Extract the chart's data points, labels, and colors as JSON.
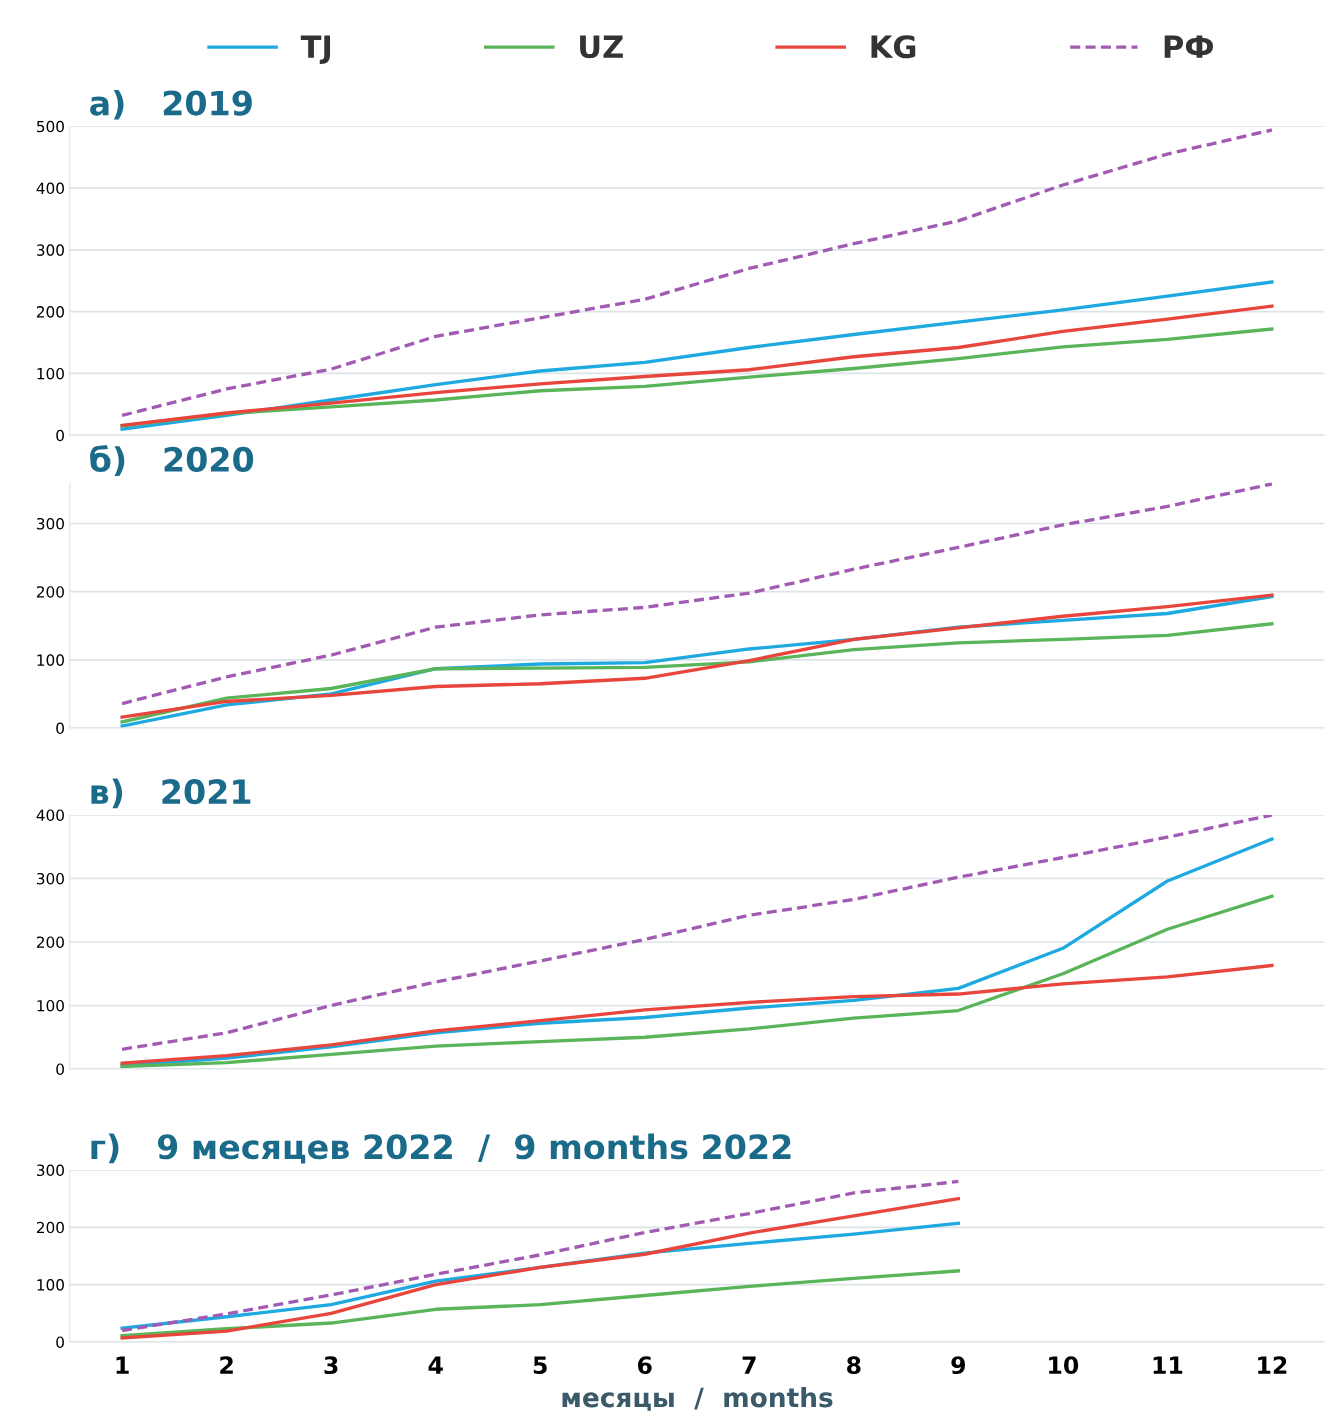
{
  "chart_data": [
    {
      "type": "line",
      "title": "а)   2019",
      "x": [
        1,
        2,
        3,
        4,
        5,
        6,
        7,
        8,
        9,
        10,
        11,
        12
      ],
      "xlim": [
        0.5,
        12.5
      ],
      "xticks": [
        1,
        2,
        3,
        4,
        5,
        6,
        7,
        8,
        9,
        10,
        11,
        12
      ],
      "ylim": [
        0,
        500
      ],
      "yticks": [
        0,
        100,
        200,
        300,
        400,
        500
      ],
      "grid": "y",
      "legend": "top",
      "tick_labels": "y",
      "series": [
        {
          "name": "TJ",
          "color": "#1fa9e1",
          "values": [
            10,
            32,
            57,
            82,
            104,
            118,
            142,
            163,
            183,
            203,
            225,
            248
          ]
        },
        {
          "name": "UZ",
          "color": "#5ab55a",
          "values": [
            15,
            35,
            46,
            57,
            72,
            79,
            94,
            108,
            124,
            143,
            155,
            172
          ]
        },
        {
          "name": "KG",
          "color": "#e8453c",
          "values": [
            16,
            36,
            52,
            69,
            83,
            95,
            106,
            127,
            142,
            168,
            188,
            209
          ]
        },
        {
          "name": "РФ",
          "color": "#a25bb3",
          "line_style": "dashed",
          "values": [
            32,
            75,
            107,
            160,
            190,
            220,
            270,
            310,
            347,
            405,
            455,
            494
          ]
        }
      ]
    },
    {
      "type": "line",
      "title": "б)   2020",
      "x": [
        1,
        2,
        3,
        4,
        5,
        6,
        7,
        8,
        9,
        10,
        11,
        12
      ],
      "xlim": [
        0.5,
        12.5
      ],
      "xticks": [
        1,
        2,
        3,
        4,
        5,
        6,
        7,
        8,
        9,
        10,
        11,
        12
      ],
      "ylim": [
        0,
        360
      ],
      "yticks": [
        0,
        100,
        200,
        300
      ],
      "grid": "y",
      "tick_labels": "y",
      "series": [
        {
          "color": "#1fa9e1",
          "values": [
            3,
            34,
            50,
            87,
            94,
            96,
            116,
            130,
            148,
            158,
            168,
            193
          ]
        },
        {
          "color": "#5ab55a",
          "values": [
            9,
            44,
            58,
            87,
            88,
            89,
            97,
            115,
            125,
            130,
            136,
            153
          ]
        },
        {
          "color": "#e8453c",
          "values": [
            16,
            39,
            48,
            61,
            65,
            73,
            99,
            130,
            147,
            164,
            178,
            195
          ]
        },
        {
          "color": "#a25bb3",
          "line_style": "dashed",
          "values": [
            36,
            75,
            107,
            148,
            166,
            177,
            198,
            233,
            265,
            298,
            325,
            358
          ]
        }
      ]
    },
    {
      "type": "line",
      "title": "в)   2021",
      "x": [
        1,
        2,
        3,
        4,
        5,
        6,
        7,
        8,
        9,
        10,
        11,
        12
      ],
      "xlim": [
        0.5,
        12.5
      ],
      "xticks": [
        1,
        2,
        3,
        4,
        5,
        6,
        7,
        8,
        9,
        10,
        11,
        12
      ],
      "ylim": [
        0,
        400
      ],
      "yticks": [
        0,
        100,
        200,
        300,
        400
      ],
      "grid": "y",
      "tick_labels": "y",
      "series": [
        {
          "color": "#1fa9e1",
          "values": [
            5,
            17,
            35,
            57,
            72,
            81,
            96,
            108,
            127,
            190,
            296,
            362
          ]
        },
        {
          "color": "#5ab55a",
          "values": [
            4,
            10,
            23,
            36,
            43,
            50,
            63,
            80,
            92,
            150,
            220,
            272
          ]
        },
        {
          "color": "#e8453c",
          "values": [
            9,
            21,
            38,
            60,
            76,
            93,
            105,
            114,
            118,
            134,
            145,
            163
          ]
        },
        {
          "color": "#a25bb3",
          "line_style": "dashed",
          "values": [
            31,
            57,
            100,
            137,
            170,
            204,
            242,
            267,
            302,
            333,
            365,
            400
          ]
        }
      ]
    },
    {
      "type": "line",
      "title": "г)   9 месяцев 2022  /  9 months 2022",
      "xlabel": "месяцы  /  months",
      "x": [
        1,
        2,
        3,
        4,
        5,
        6,
        7,
        8,
        9
      ],
      "xlim": [
        0.5,
        12.5
      ],
      "xticks": [
        1,
        2,
        3,
        4,
        5,
        6,
        7,
        8,
        9,
        10,
        11,
        12
      ],
      "ylim": [
        0,
        300
      ],
      "yticks": [
        0,
        100,
        200,
        300
      ],
      "grid": "y",
      "series": [
        {
          "color": "#1fa9e1",
          "values": [
            24,
            44,
            65,
            106,
            130,
            155,
            172,
            188,
            207
          ]
        },
        {
          "color": "#5ab55a",
          "values": [
            11,
            23,
            33,
            57,
            65,
            81,
            97,
            111,
            124
          ]
        },
        {
          "color": "#e8453c",
          "values": [
            7,
            19,
            50,
            100,
            130,
            153,
            190,
            220,
            250
          ]
        },
        {
          "color": "#a25bb3",
          "line_style": "dashed",
          "values": [
            20,
            49,
            82,
            118,
            152,
            191,
            224,
            260,
            280
          ]
        }
      ]
    }
  ]
}
